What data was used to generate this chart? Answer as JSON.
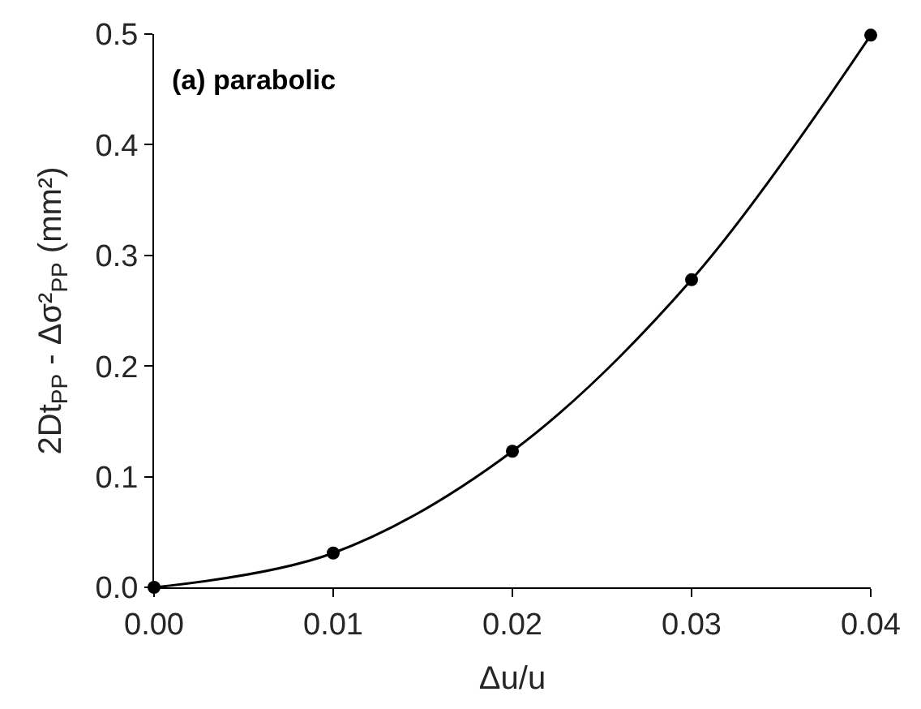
{
  "chart_data": {
    "type": "line",
    "xlabel": "Δu/u",
    "ylabel": "2Dt$_{PP}$ - Δσ²$_{PP}$ (mm²)",
    "annotations": [
      "(a) parabolic"
    ],
    "x": [
      0,
      0.01,
      0.02,
      0.03,
      0.04
    ],
    "series": [
      {
        "color": "#000000",
        "values": [
          0,
          0.031,
          0.123,
          0.278,
          0.499
        ]
      }
    ],
    "xlim": [
      0,
      0.04
    ],
    "xticks": [
      {
        "value": 0,
        "label": "0.00"
      },
      0.01,
      0.02,
      0.03,
      0.04
    ],
    "ylim": [
      0,
      0.5
    ],
    "yticks": [
      {
        "value": 0,
        "label": "0.0"
      },
      0.1,
      0.2,
      0.3,
      0.4,
      0.5
    ],
    "marker": "circle",
    "line_style": "solid"
  }
}
